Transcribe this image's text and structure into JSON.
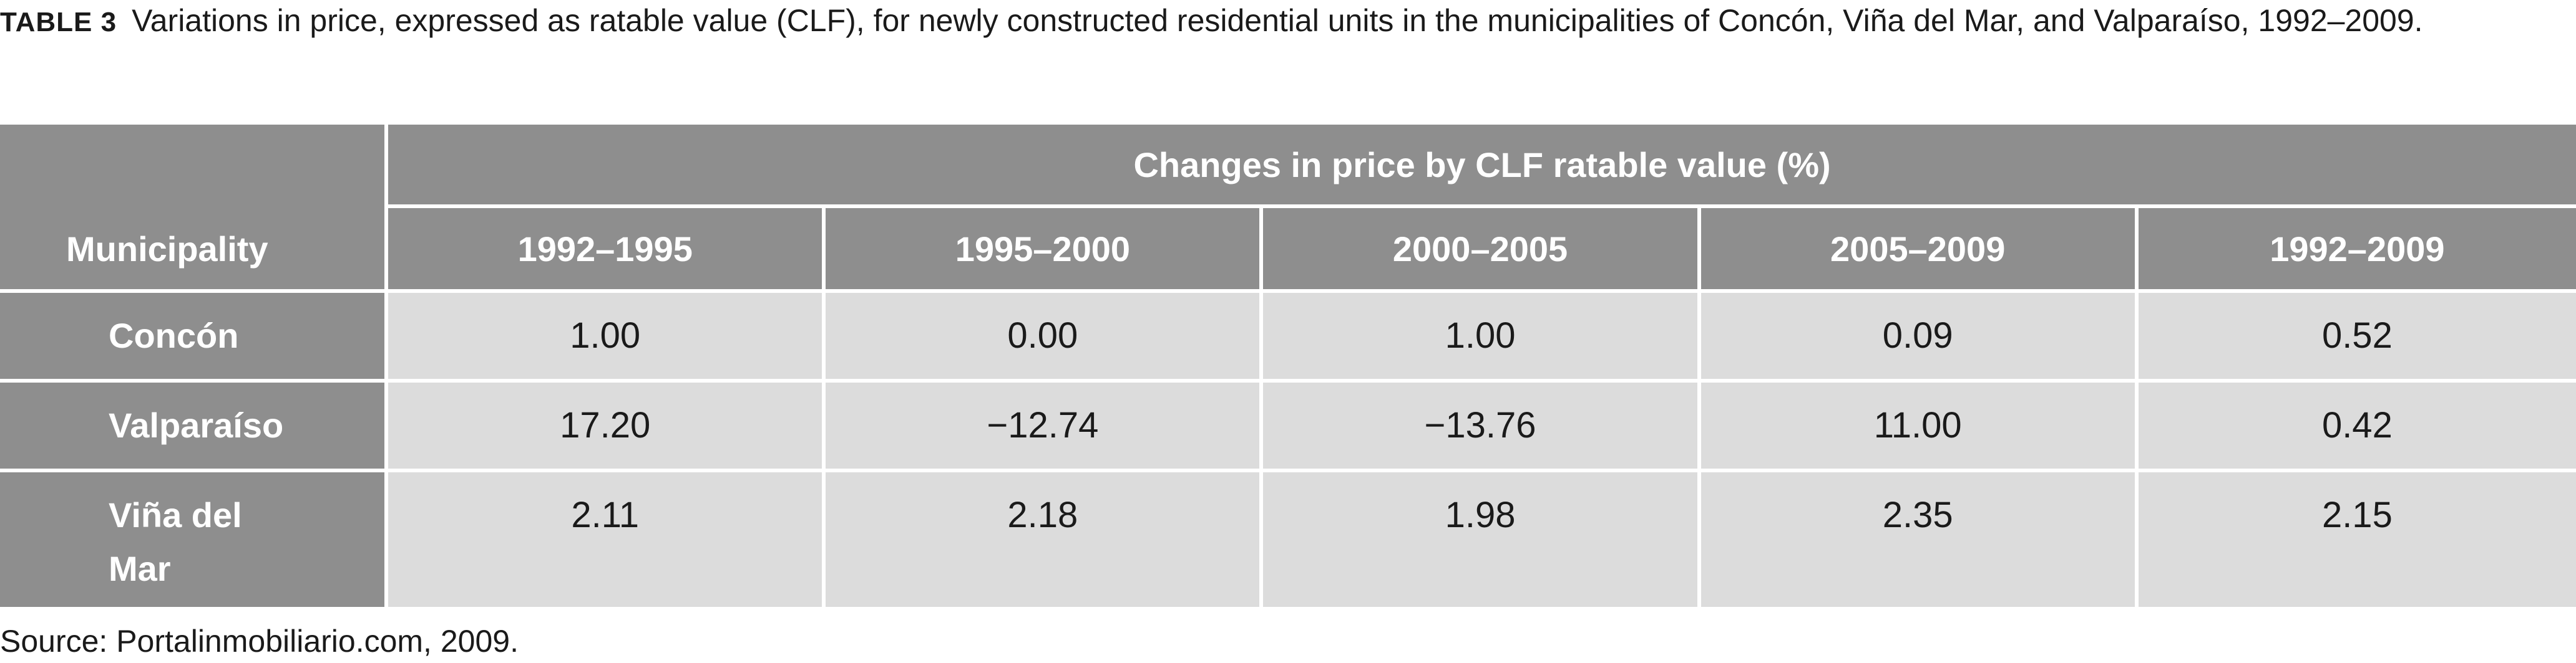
{
  "caption": {
    "label": "TABLE 3",
    "text": "Variations in price, expressed as ratable value (CLF), for newly constructed residential units in the municipalities of Concón, Viña del Mar, and Valparaíso, 1992–2009."
  },
  "table": {
    "municipality_header": "Municipality",
    "group_header": "Changes in price by CLF ratable value (%)",
    "periods": [
      "1992–1995",
      "1995–2000",
      "2000–2005",
      "2005–2009",
      "1992–2009"
    ],
    "rows": [
      {
        "municipality": "Concón",
        "values": [
          "1.00",
          "0.00",
          "1.00",
          "0.09",
          "0.52"
        ]
      },
      {
        "municipality": "Valparaíso",
        "values": [
          "17.20",
          "−12.74",
          "−13.76",
          "11.00",
          "0.42"
        ]
      },
      {
        "municipality": "Viña del Mar",
        "values": [
          "2.11",
          "2.18",
          "1.98",
          "2.35",
          "2.15"
        ]
      }
    ]
  },
  "source": "Source: Portalinmobiliario.com, 2009.",
  "colors": {
    "header_bg": "#8e8e8e",
    "cell_bg": "#dcdcdc",
    "rule": "#ffffff"
  }
}
